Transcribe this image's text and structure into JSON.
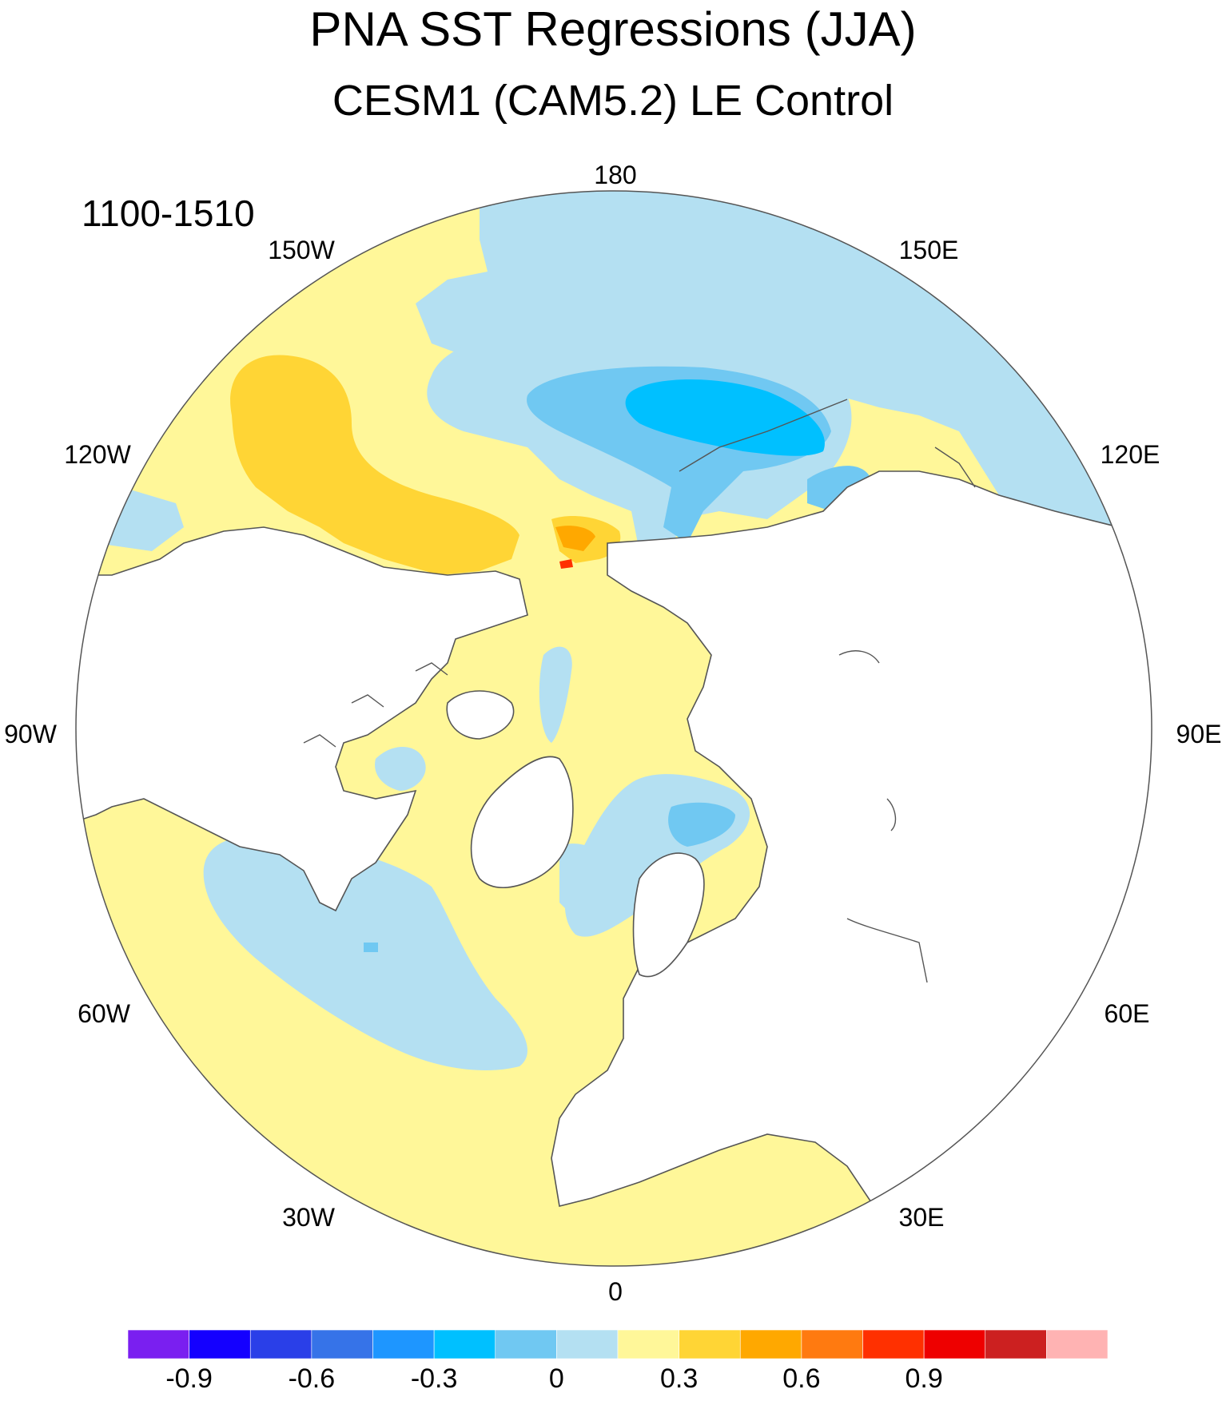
{
  "title": "PNA SST Regressions (JJA)",
  "subtitle": "CESM1 (CAM5.2) LE Control",
  "period": "1100-1510",
  "map": {
    "projection": "north-polar-stereographic",
    "longitude_labels": {
      "lon_180": "180",
      "lon_150E": "150E",
      "lon_120E": "120E",
      "lon_90E": "90E",
      "lon_60E": "60E",
      "lon_30E": "30E",
      "lon_0": "0",
      "lon_30W": "30W",
      "lon_60W": "60W",
      "lon_90W": "90W",
      "lon_120W": "120W",
      "lon_150W": "150W"
    },
    "land_color": "#ffffff",
    "coastline_color": "#555555"
  },
  "colorbar": {
    "colors": [
      "#7a1ff0",
      "#1400ff",
      "#2a3fe8",
      "#3673e8",
      "#1e96ff",
      "#00c0ff",
      "#70c8f2",
      "#b4e0f2",
      "#fff799",
      "#ffd535",
      "#ffa800",
      "#ff7a10",
      "#ff3000",
      "#ee0000",
      "#cc2020",
      "#ffb3b3"
    ],
    "tick_labels": [
      "-0.9",
      "-0.6",
      "-0.3",
      "0",
      "0.3",
      "0.6",
      "0.9"
    ]
  }
}
